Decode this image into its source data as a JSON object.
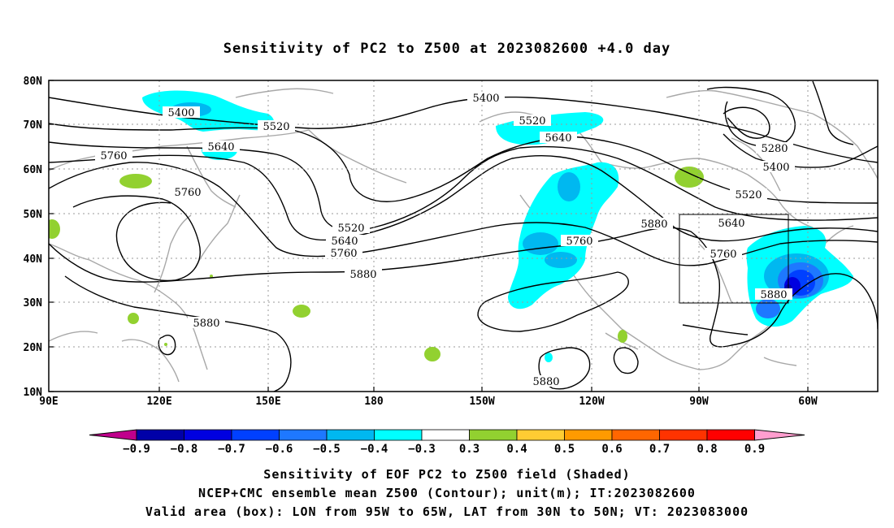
{
  "title": "Sensitivity of PC2 to Z500 at 2023082600 +4.0 day",
  "lat_labels": [
    "80N",
    "70N",
    "60N",
    "50N",
    "40N",
    "30N",
    "20N",
    "10N"
  ],
  "lon_labels": [
    "90E",
    "120E",
    "150E",
    "180",
    "150W",
    "120W",
    "90W",
    "60W"
  ],
  "contour_labels": {
    "c5400a": "5400",
    "c5520a": "5520",
    "c5640a": "5640",
    "c5760a": "5760",
    "c5760b": "5760",
    "c5400b": "5400",
    "c5520b": "5520",
    "c5640b": "5640",
    "c5280": "5280",
    "c5400c": "5400",
    "c5520c": "5520",
    "c5640c": "5640",
    "c5520d": "5520",
    "c5640d": "5640",
    "c5760c": "5760",
    "c5880a": "5880",
    "c5760d": "5760",
    "c5880b": "5880",
    "c5760e": "5760",
    "c5880c": "5880",
    "c5880d": "5880",
    "c5880e": "5880"
  },
  "colorbar": {
    "labels": [
      "−0.9",
      "−0.8",
      "−0.7",
      "−0.6",
      "−0.5",
      "−0.4",
      "−0.3",
      "0.3",
      "0.4",
      "0.5",
      "0.6",
      "0.7",
      "0.8",
      "0.9"
    ],
    "colors": [
      "#0000a8",
      "#0000e0",
      "#0040ff",
      "#1e78ff",
      "#00b8f0",
      "#00ffff",
      "#ffffff",
      "#92d130",
      "#ffcc33",
      "#ff9a00",
      "#ff6600",
      "#ff3300",
      "#ff0000"
    ],
    "left_tip_color": "#c0008c",
    "right_tip_color": "#ff9ecf"
  },
  "captions": {
    "line1": "Sensitivity of EOF PC2 to Z500 field (Shaded)",
    "line2": "NCEP+CMC ensemble mean Z500 (Contour); unit(m); IT:2023082600",
    "line3": "Valid area (box): LON from 95W to 65W, LAT from 30N to 50N; VT: 2023083000"
  }
}
